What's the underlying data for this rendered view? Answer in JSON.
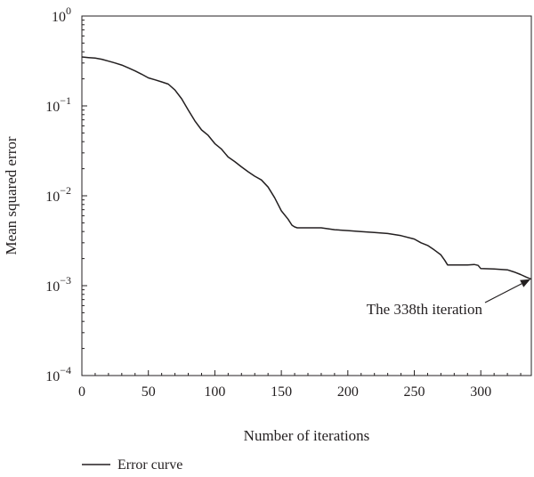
{
  "chart_data": {
    "type": "line",
    "xlabel": "Number of iterations",
    "ylabel": "Mean squared error",
    "xlim": [
      0,
      338
    ],
    "ylim": [
      0.0001,
      1
    ],
    "yscale": "log",
    "grid": false,
    "legend_position": "bottom-left, below plot",
    "x_ticks": [
      {
        "value": 0,
        "label": "0"
      },
      {
        "value": 50,
        "label": "50"
      },
      {
        "value": 100,
        "label": "100"
      },
      {
        "value": 150,
        "label": "150"
      },
      {
        "value": 200,
        "label": "200"
      },
      {
        "value": 250,
        "label": "250"
      },
      {
        "value": 300,
        "label": "300"
      }
    ],
    "y_ticks": [
      {
        "value": 1,
        "base": "10",
        "exp": "0"
      },
      {
        "value": 0.1,
        "base": "10",
        "exp": "−1"
      },
      {
        "value": 0.01,
        "base": "10",
        "exp": "−2"
      },
      {
        "value": 0.001,
        "base": "10",
        "exp": "−3"
      },
      {
        "value": 0.0001,
        "base": "10",
        "exp": "−4"
      }
    ],
    "series": [
      {
        "name": "Error curve",
        "color": "#231f20",
        "x": [
          0,
          5,
          10,
          15,
          20,
          25,
          30,
          35,
          40,
          45,
          50,
          55,
          60,
          65,
          70,
          75,
          80,
          85,
          90,
          95,
          100,
          105,
          110,
          115,
          120,
          125,
          130,
          135,
          140,
          145,
          150,
          155,
          158,
          160,
          162,
          170,
          180,
          190,
          200,
          210,
          220,
          230,
          240,
          250,
          255,
          260,
          265,
          270,
          273,
          275,
          280,
          285,
          290,
          295,
          298,
          300,
          310,
          320,
          325,
          330,
          335,
          338
        ],
        "y": [
          0.35,
          0.345,
          0.34,
          0.33,
          0.315,
          0.3,
          0.285,
          0.265,
          0.245,
          0.225,
          0.205,
          0.195,
          0.185,
          0.175,
          0.15,
          0.12,
          0.09,
          0.068,
          0.054,
          0.047,
          0.038,
          0.033,
          0.027,
          0.024,
          0.021,
          0.0185,
          0.0165,
          0.015,
          0.0125,
          0.0095,
          0.0068,
          0.0055,
          0.0047,
          0.0045,
          0.0044,
          0.0044,
          0.0044,
          0.0042,
          0.0041,
          0.004,
          0.0039,
          0.0038,
          0.0036,
          0.0033,
          0.003,
          0.0028,
          0.0025,
          0.0022,
          0.0019,
          0.0017,
          0.0017,
          0.0017,
          0.0017,
          0.00172,
          0.00168,
          0.00155,
          0.00153,
          0.0015,
          0.00142,
          0.00133,
          0.00123,
          0.00118
        ]
      }
    ],
    "annotations": [
      {
        "text": "The 338th iteration",
        "target_x": 338,
        "target_y": 0.00118
      }
    ]
  }
}
